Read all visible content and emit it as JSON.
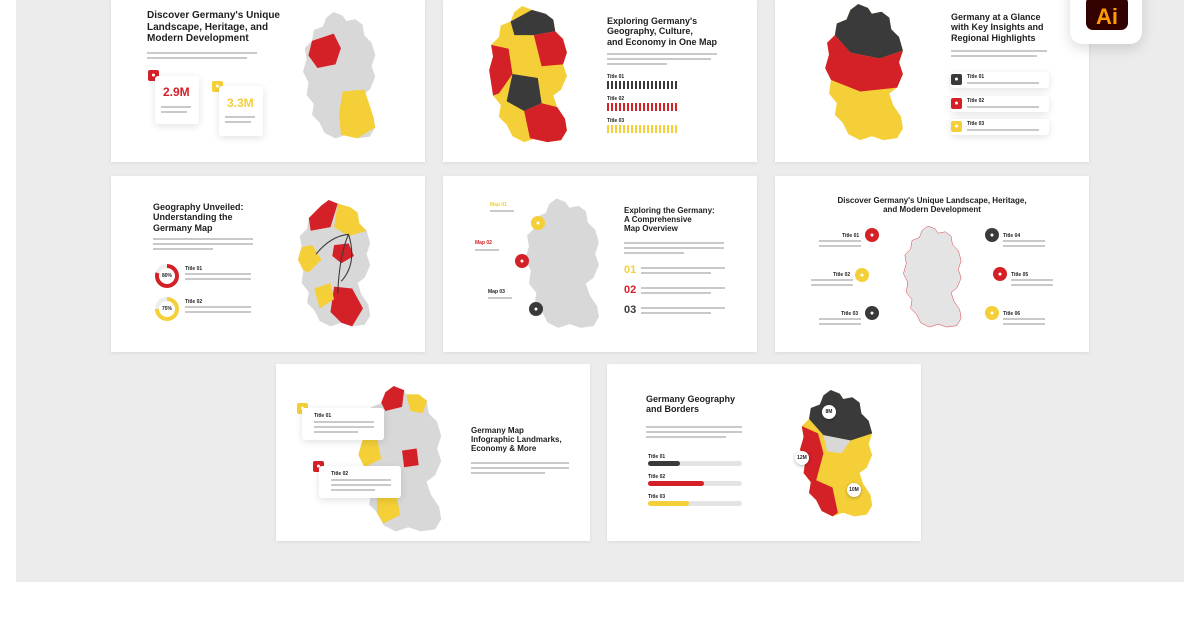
{
  "colors": {
    "red": "#d42027",
    "yellow": "#f4cf37",
    "dark": "#3a3a3a",
    "gray": "#d8d8d8",
    "backdrop": "#ececec"
  },
  "app_badge": {
    "label": "Ai"
  },
  "slides": {
    "s1": {
      "title": [
        "Discover Germany's Unique",
        "Landscape, Heritage, and",
        "Modern Development"
      ],
      "stat1": "2.9M",
      "stat2": "3.3M"
    },
    "s2": {
      "title": [
        "Exploring Germany's",
        "Geography, Culture,",
        "and Economy in One Map"
      ],
      "items": [
        "Title 01",
        "Title 02",
        "Title 03"
      ]
    },
    "s3": {
      "title": [
        "Germany at a Glance",
        "with Key Insights and",
        "Regional Highlights"
      ],
      "items": [
        "Title 01",
        "Title 02",
        "Title 03"
      ]
    },
    "s4": {
      "title": [
        "Geography Unveiled:",
        "Understanding the",
        "Germany Map"
      ],
      "items": [
        "Title 01",
        "Title 02"
      ],
      "percents": [
        "80%",
        "75%"
      ]
    },
    "s5": {
      "title": [
        "Exploring the Germany:",
        "A Comprehensive",
        "Map Overview"
      ],
      "maps": [
        "Map 01",
        "Map 02",
        "Map 03"
      ],
      "numbers": [
        "01",
        "02",
        "03"
      ]
    },
    "s6": {
      "title": [
        "Discover Germany's Unique Landscape, Heritage,",
        "and Modern Development"
      ],
      "items": [
        "Title 01",
        "Title 02",
        "Title 03",
        "Title 04",
        "Title 05",
        "Title 06"
      ]
    },
    "s7": {
      "title": [
        "Germany Map",
        "Infographic Landmarks,",
        "Economy & More"
      ],
      "items": [
        "Title 01",
        "Title 02"
      ]
    },
    "s8": {
      "title": [
        "Germany Geography",
        "and Borders"
      ],
      "items": [
        "Title 01",
        "Title 02",
        "Title 03"
      ],
      "pins": [
        "8M",
        "12M",
        "10M"
      ]
    }
  }
}
